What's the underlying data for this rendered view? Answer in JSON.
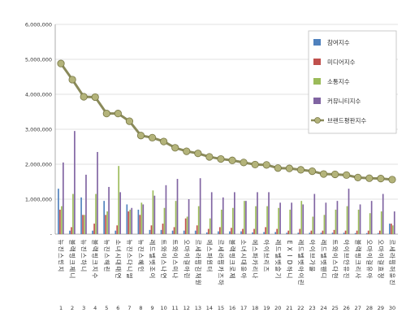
{
  "chart_data": {
    "type": "bar",
    "ylim": [
      0,
      6000000
    ],
    "yticks": [
      0,
      1000000,
      2000000,
      3000000,
      4000000,
      5000000,
      6000000
    ],
    "ytick_labels": [
      "-",
      "1,000,000",
      "2,000,000",
      "3,000,000",
      "4,000,000",
      "5,000,000",
      "6,000,000"
    ],
    "grid": true,
    "legend_position": "top-right",
    "categories": [
      "뉴진스 민지",
      "블랙핑크 제니",
      "뉴진스 하니",
      "블랙핑크 지수",
      "뉴진스 해린",
      "소녀시대 태연",
      "뉴진스 다니엘",
      "뉴진스 혜인",
      "레드벨벳 조이",
      "트와이스 나연",
      "트와이스 미나",
      "오마이걸 아린",
      "르세라핌 김채원",
      "에스파 윈터",
      "르세라핌 카즈하",
      "블랙핑크 로제",
      "소녀시대 윤아",
      "에스파 카리나",
      "아이브 리즈",
      "레드벨벳 슬기",
      "EXID 하니",
      "레드벨벳 아이린",
      "아이브 가을",
      "레드벨벳 웬디",
      "트와이스 다현",
      "아이브 안유진",
      "블랙핑크 리사",
      "오마이걸 유아",
      "오마이걸 효정",
      "르세라핌 허윤진"
    ],
    "category_numbers": [
      "1",
      "2",
      "3",
      "4",
      "5",
      "6",
      "7",
      "8",
      "9",
      "10",
      "11",
      "12",
      "13",
      "14",
      "15",
      "16",
      "17",
      "18",
      "19",
      "20",
      "21",
      "22",
      "23",
      "24",
      "25",
      "26",
      "27",
      "28",
      "29",
      "30"
    ],
    "series": [
      {
        "name": "참여지수",
        "type": "bar",
        "color": "#4f81bd",
        "values": [
          1300000,
          100000,
          1050000,
          100000,
          950000,
          100000,
          850000,
          700000,
          120000,
          120000,
          100000,
          100000,
          100000,
          50000,
          80000,
          80000,
          80000,
          50000,
          60000,
          60000,
          40000,
          40000,
          40000,
          40000,
          40000,
          40000,
          30000,
          30000,
          30000,
          300000
        ]
      },
      {
        "name": "미디어지수",
        "type": "bar",
        "color": "#c0504d",
        "values": [
          700000,
          200000,
          550000,
          300000,
          550000,
          250000,
          650000,
          550000,
          250000,
          300000,
          200000,
          450000,
          250000,
          150000,
          200000,
          180000,
          150000,
          150000,
          200000,
          150000,
          100000,
          150000,
          100000,
          100000,
          120000,
          100000,
          100000,
          100000,
          100000,
          300000
        ]
      },
      {
        "name": "소통지수",
        "type": "bar",
        "color": "#9bbb59",
        "values": [
          800000,
          1150000,
          550000,
          1150000,
          650000,
          1950000,
          700000,
          900000,
          1250000,
          750000,
          950000,
          500000,
          800000,
          450000,
          700000,
          750000,
          950000,
          800000,
          800000,
          750000,
          700000,
          950000,
          500000,
          550000,
          700000,
          800000,
          700000,
          600000,
          650000,
          250000
        ]
      },
      {
        "name": "커뮤니티지수",
        "type": "bar",
        "color": "#8064a2",
        "values": [
          2050000,
          2950000,
          1700000,
          2350000,
          1350000,
          1200000,
          750000,
          850000,
          1100000,
          1400000,
          1580000,
          1000000,
          1600000,
          1200000,
          1050000,
          1200000,
          950000,
          1200000,
          1200000,
          900000,
          900000,
          850000,
          1150000,
          900000,
          950000,
          1300000,
          850000,
          950000,
          1150000,
          650000
        ]
      },
      {
        "name": "브랜드평판지수",
        "type": "line",
        "color": "#8a8a5a",
        "values": [
          4880000,
          4420000,
          3930000,
          3920000,
          3450000,
          3450000,
          3230000,
          2820000,
          2760000,
          2650000,
          2470000,
          2370000,
          2310000,
          2210000,
          2150000,
          2110000,
          2050000,
          1990000,
          1980000,
          1890000,
          1880000,
          1840000,
          1800000,
          1720000,
          1710000,
          1690000,
          1620000,
          1600000,
          1590000,
          1560000
        ]
      }
    ]
  }
}
